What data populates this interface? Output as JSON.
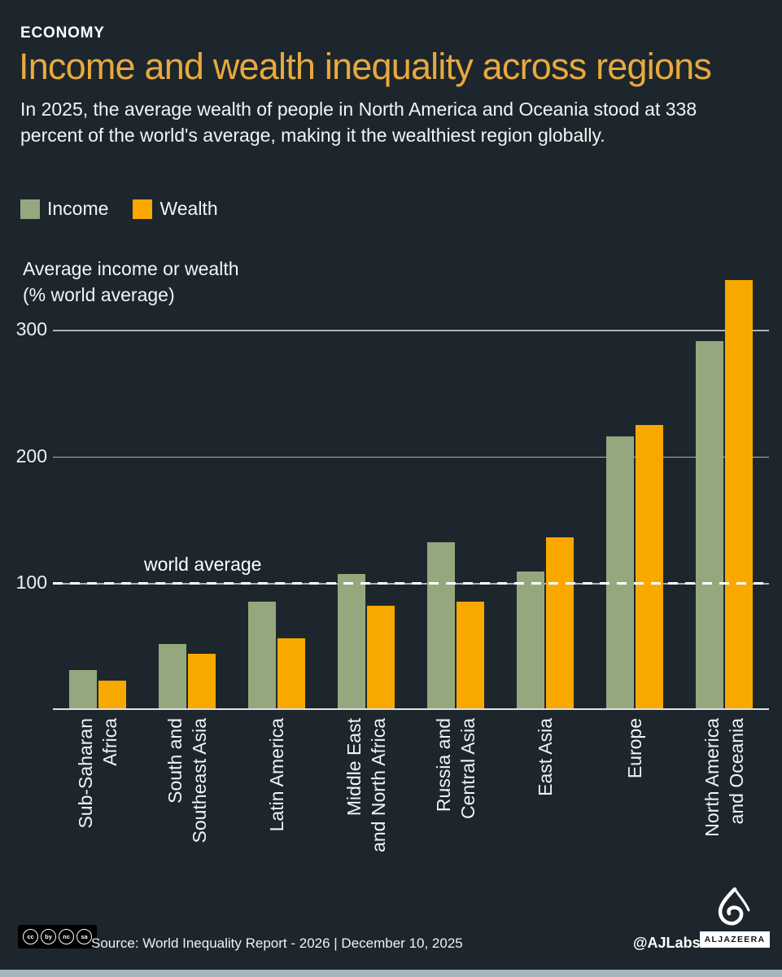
{
  "header": {
    "kicker": "ECONOMY",
    "title": "Income and wealth inequality across regions",
    "subtitle": "In 2025, the average wealth of people in North America and Oceania stood at 338 percent of the world's average, making it the wealthiest region globally."
  },
  "chart_data": {
    "type": "bar",
    "title": "Income and wealth inequality across regions",
    "ylabel": "Average income or wealth (% world average)",
    "ylabel_lines": [
      "Average income or wealth",
      "(% world average)"
    ],
    "ylim": [
      0,
      360
    ],
    "yticks": [
      100,
      200,
      300
    ],
    "grid": true,
    "legend_position": "top-left",
    "reference_line": {
      "value": 100,
      "label": "world average",
      "style": "dashed"
    },
    "categories": [
      "Sub-Saharan Africa",
      "South and Southeast Asia",
      "Latin America",
      "Middle East and North Africa",
      "Russia and Central Asia",
      "East Asia",
      "Europe",
      "North America and Oceania"
    ],
    "category_display": [
      "Sub-Saharan\nAfrica",
      "South and\nSoutheast Asia",
      "Latin America",
      "Middle East\nand North Africa",
      "Russia and\nCentral Asia",
      "East Asia",
      "Europe",
      "North America\nand Oceania"
    ],
    "series": [
      {
        "name": "Income",
        "color": "#95a87d",
        "values": [
          30,
          51,
          84,
          106,
          131,
          108,
          215,
          290
        ]
      },
      {
        "name": "Wealth",
        "color": "#f9a800",
        "values": [
          22,
          43,
          55,
          81,
          84,
          135,
          224,
          338
        ]
      }
    ]
  },
  "footer": {
    "license": [
      "cc",
      "by",
      "nc",
      "sa"
    ],
    "source": "Source: World Inequality Report - 2026  |  December 10, 2025",
    "credit": "@AJLabs",
    "brand": "ALJAZEERA"
  },
  "colors": {
    "background": "#1d262c",
    "title_gold": "#e8a93d",
    "income_green": "#95a87d",
    "wealth_orange": "#f9a800",
    "footer_strip": "#a2b7be"
  }
}
